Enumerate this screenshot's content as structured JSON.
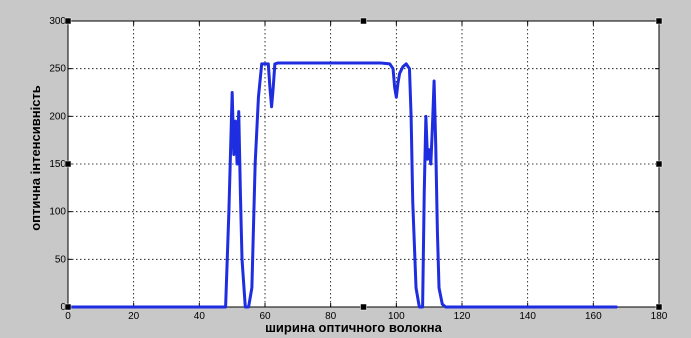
{
  "chart_data": {
    "type": "line",
    "xlabel": "ширина оптичного волокна",
    "ylabel": "оптична інтенсивність",
    "xlim": [
      0,
      180
    ],
    "ylim": [
      0,
      300
    ],
    "xticks": [
      0,
      20,
      40,
      60,
      80,
      100,
      120,
      140,
      160,
      180
    ],
    "yticks": [
      0,
      50,
      100,
      150,
      200,
      250,
      300
    ],
    "grid": true,
    "colors": {
      "line": "#1f2de0",
      "axes_bg": "#ffffff",
      "figure_bg": "#c8c8c8"
    },
    "series": [
      {
        "x": [
          0,
          46,
          48,
          49,
          50,
          50.5,
          51,
          51.5,
          52,
          52.5,
          53,
          54,
          55,
          56,
          57,
          58,
          59,
          60,
          61,
          61.5,
          62,
          62.5,
          63,
          64,
          66,
          70,
          80,
          90,
          95,
          98,
          99,
          99.5,
          100,
          100.5,
          101,
          102,
          103,
          104,
          104.5,
          105,
          106,
          107,
          108,
          108.5,
          109,
          109.5,
          110,
          110.5,
          111,
          111.5,
          112,
          112.5,
          113,
          114,
          115,
          120,
          140,
          160,
          167
        ],
        "y": [
          0,
          0,
          0,
          100,
          225,
          160,
          195,
          150,
          205,
          120,
          50,
          0,
          0,
          20,
          150,
          220,
          255,
          255,
          255,
          230,
          210,
          230,
          255,
          256,
          256,
          256,
          256,
          256,
          256,
          255,
          250,
          230,
          220,
          235,
          245,
          252,
          255,
          250,
          200,
          110,
          20,
          0,
          0,
          120,
          200,
          155,
          165,
          150,
          190,
          237,
          170,
          80,
          20,
          3,
          0,
          0,
          0,
          0,
          0
        ]
      }
    ]
  }
}
